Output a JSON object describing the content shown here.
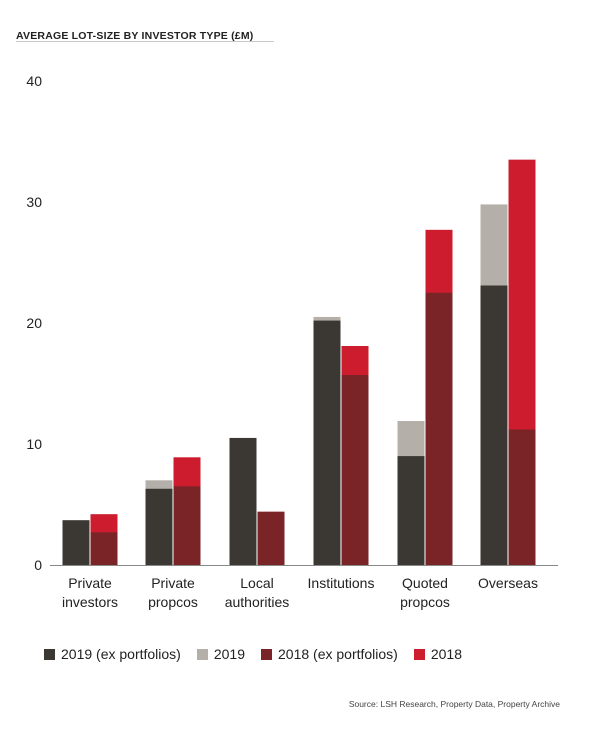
{
  "title": "AVERAGE LOT-SIZE BY INVESTOR TYPE (£M)",
  "source": "Source: LSH Research, Property Data, Property Archive",
  "colors": {
    "2019_ex": "#3b3732",
    "2019_total": "#b5afaa",
    "2018_ex": "#7a2428",
    "2018_total": "#cc1c2e",
    "axis": "#888888"
  },
  "chart_data": {
    "type": "bar",
    "title": "AVERAGE LOT-SIZE BY INVESTOR TYPE (£M)",
    "xlabel": "",
    "ylabel": "",
    "ylim": [
      0,
      40
    ],
    "yticks": [
      0,
      10,
      20,
      30,
      40
    ],
    "grid": false,
    "legend_position": "bottom",
    "categories": [
      [
        "Private",
        "investors"
      ],
      [
        "Private",
        "propcos"
      ],
      [
        "Local",
        "authorities"
      ],
      [
        "Institutions"
      ],
      [
        "Quoted",
        "propcos"
      ],
      [
        "Overseas"
      ]
    ],
    "series": [
      {
        "name": "2019 (ex portfolios)",
        "values": [
          3.7,
          6.3,
          10.5,
          20.2,
          9.0,
          23.1
        ]
      },
      {
        "name": "2019",
        "values": [
          3.7,
          7.0,
          10.5,
          20.5,
          11.9,
          29.8
        ]
      },
      {
        "name": "2018 (ex portfolios)",
        "values": [
          2.7,
          6.5,
          4.4,
          15.7,
          22.5,
          11.2
        ]
      },
      {
        "name": "2018",
        "values": [
          4.2,
          8.9,
          4.4,
          18.1,
          27.7,
          33.5
        ]
      }
    ]
  }
}
